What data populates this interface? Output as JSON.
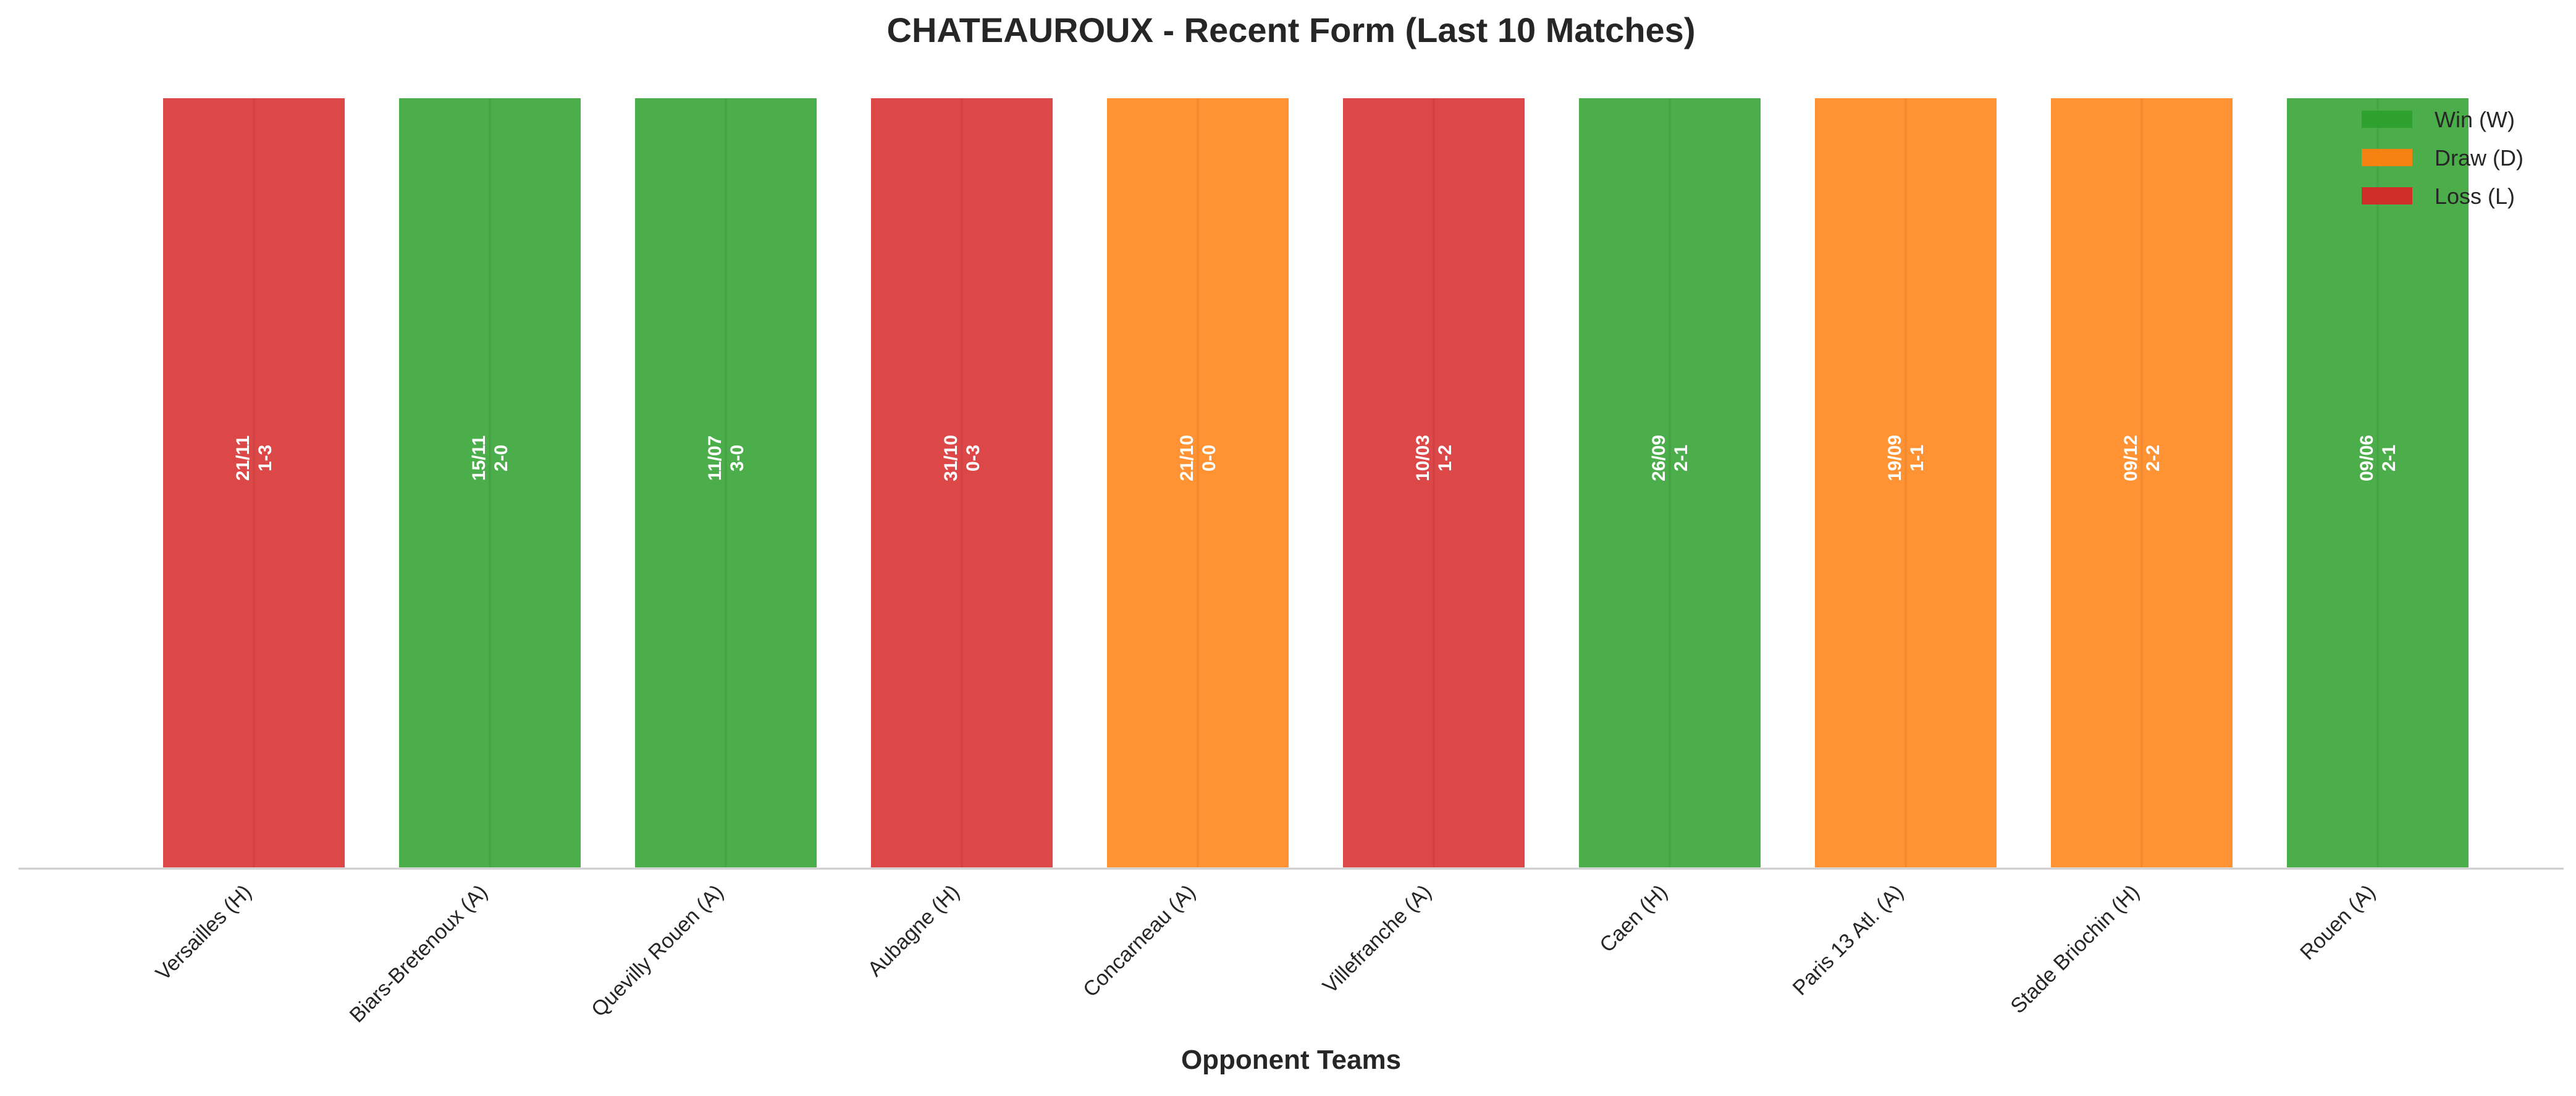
{
  "chart_data": {
    "type": "bar",
    "title": "CHATEAUROUX - Recent Form (Last 10 Matches)",
    "xlabel": "Opponent Teams",
    "ylabel": "",
    "ylim": [
      0,
      1
    ],
    "grid": false,
    "legend_position": "top-right",
    "legend": [
      {
        "label": "Win (W)",
        "result": "W"
      },
      {
        "label": "Draw (D)",
        "result": "D"
      },
      {
        "label": "Loss (L)",
        "result": "L"
      }
    ],
    "colors": {
      "W": "#2ca02c",
      "D": "#ff7f0e",
      "L": "#d62728"
    },
    "categories": [
      "Versailles (H)",
      "Biars-Bretenoux (A)",
      "Quevilly Rouen (A)",
      "Aubagne (H)",
      "Concarneau (A)",
      "Villefranche (A)",
      "Caen (H)",
      "Paris 13 Atl. (A)",
      "Stade Briochin (H)",
      "Rouen (A)"
    ],
    "values": [
      1,
      1,
      1,
      1,
      1,
      1,
      1,
      1,
      1,
      1
    ],
    "results": [
      "L",
      "W",
      "W",
      "L",
      "D",
      "L",
      "W",
      "D",
      "D",
      "W"
    ],
    "dates": [
      "21/11",
      "15/11",
      "11/07",
      "31/10",
      "21/10",
      "10/03",
      "26/09",
      "19/09",
      "09/12",
      "09/06"
    ],
    "scores": [
      "1-3",
      "2-0",
      "3-0",
      "0-3",
      "0-0",
      "1-2",
      "2-1",
      "1-1",
      "2-2",
      "2-1"
    ]
  }
}
